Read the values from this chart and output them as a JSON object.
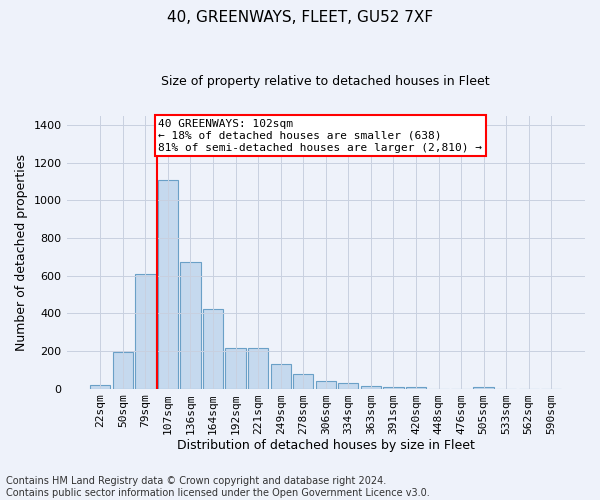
{
  "title1": "40, GREENWAYS, FLEET, GU52 7XF",
  "title2": "Size of property relative to detached houses in Fleet",
  "xlabel": "Distribution of detached houses by size in Fleet",
  "ylabel": "Number of detached properties",
  "footer": "Contains HM Land Registry data © Crown copyright and database right 2024.\nContains public sector information licensed under the Open Government Licence v3.0.",
  "categories": [
    "22sqm",
    "50sqm",
    "79sqm",
    "107sqm",
    "136sqm",
    "164sqm",
    "192sqm",
    "221sqm",
    "249sqm",
    "278sqm",
    "306sqm",
    "334sqm",
    "363sqm",
    "391sqm",
    "420sqm",
    "448sqm",
    "476sqm",
    "505sqm",
    "533sqm",
    "562sqm",
    "590sqm"
  ],
  "values": [
    18,
    195,
    610,
    1110,
    670,
    425,
    215,
    215,
    130,
    80,
    40,
    30,
    15,
    10,
    10,
    0,
    0,
    10,
    0,
    0,
    0
  ],
  "bar_color": "#c5d9ee",
  "bar_edge_color": "#6aa0c7",
  "ylim": [
    0,
    1450
  ],
  "yticks": [
    0,
    200,
    400,
    600,
    800,
    1000,
    1200,
    1400
  ],
  "annotation_text": "40 GREENWAYS: 102sqm\n← 18% of detached houses are smaller (638)\n81% of semi-detached houses are larger (2,810) →",
  "annotation_box_color": "white",
  "annotation_box_edge": "red",
  "vline_color": "red",
  "vline_x_index": 3,
  "bg_color": "#eef2fa",
  "grid_color": "#c8d0e0",
  "title1_fontsize": 11,
  "title2_fontsize": 9,
  "ylabel_fontsize": 9,
  "xlabel_fontsize": 9,
  "tick_fontsize": 8,
  "annot_fontsize": 8,
  "footer_fontsize": 7
}
